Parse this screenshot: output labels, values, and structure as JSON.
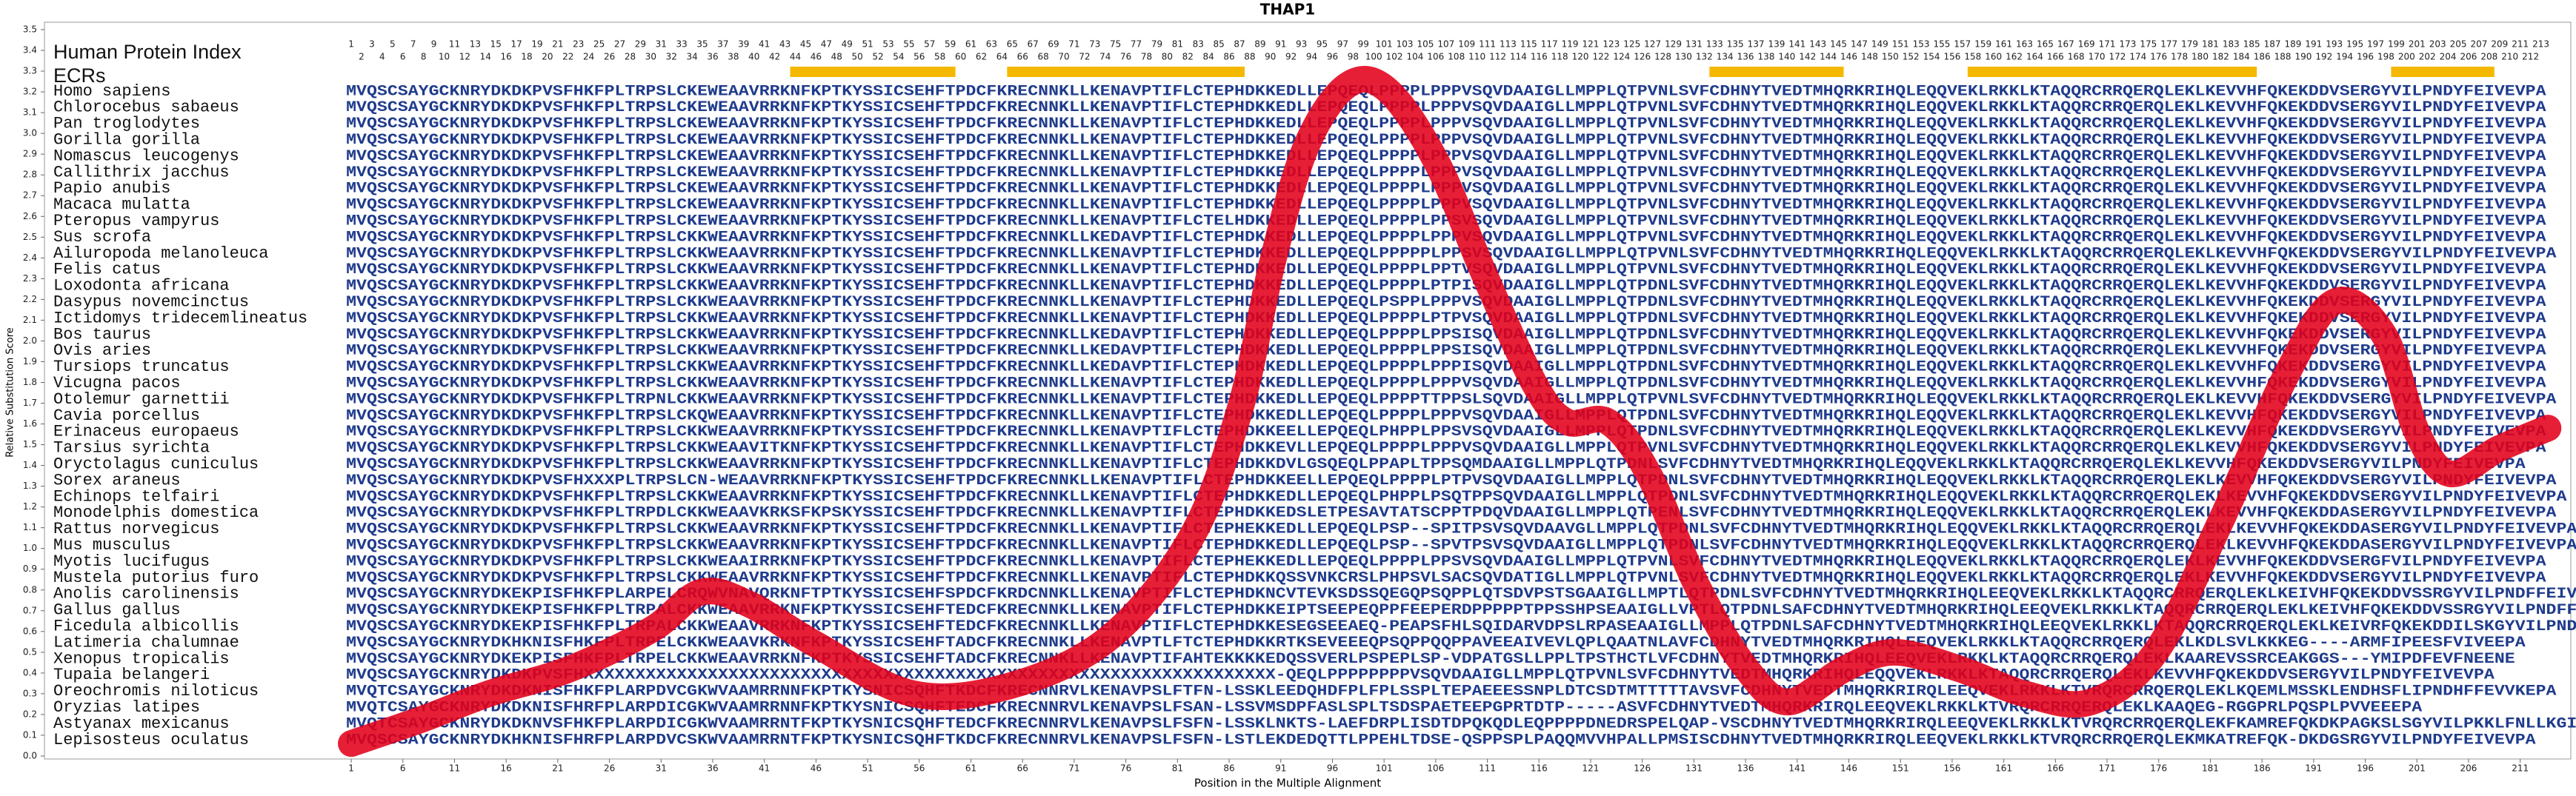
{
  "chart_data": {
    "type": "line",
    "title": "THAP1",
    "y_label": "Relative Substitution Score",
    "x_label": "Position in the Multiple Alignment",
    "index_label": "Human Protein Index",
    "ecr_label": "ECRs",
    "ecr_color": "#f5b800",
    "ecrs": [
      [
        44,
        59
      ],
      [
        65,
        87
      ],
      [
        133,
        145
      ],
      [
        158,
        185
      ],
      [
        199,
        208
      ]
    ],
    "protein_index": [
      1,
      2,
      3,
      4,
      5,
      6,
      7,
      8,
      9,
      10,
      11,
      12,
      13,
      14,
      15,
      16,
      17,
      18,
      19,
      20,
      21,
      22,
      23,
      24,
      25,
      26,
      27,
      28,
      29,
      30,
      31,
      32,
      33,
      34,
      35,
      36,
      37,
      38,
      39,
      40,
      41,
      42,
      43,
      44,
      45,
      46,
      47,
      48,
      49,
      50,
      51,
      52,
      53,
      54,
      55,
      56,
      57,
      58,
      59,
      60,
      61,
      62,
      63,
      64,
      65,
      66,
      67,
      68,
      69,
      70,
      71,
      72,
      73,
      74,
      75,
      76,
      77,
      78,
      79,
      80,
      81,
      82,
      83,
      84,
      85,
      86,
      87,
      88,
      89,
      90,
      91,
      92,
      93,
      94,
      95,
      96,
      97,
      98,
      99,
      100,
      101,
      102,
      103,
      104,
      105,
      106,
      107,
      108,
      109,
      110,
      111,
      112,
      113,
      114,
      115,
      116,
      117,
      118,
      119,
      120,
      121,
      122,
      123,
      124,
      125,
      126,
      127,
      128,
      129,
      130,
      131,
      132,
      133,
      134,
      135,
      136,
      137,
      138,
      139,
      140,
      141,
      142,
      143,
      144,
      145,
      146,
      147,
      148,
      149,
      150,
      151,
      152,
      153,
      154,
      155,
      156,
      157,
      158,
      159,
      160,
      161,
      162,
      163,
      164,
      165,
      166,
      167,
      168,
      169,
      170,
      171,
      172,
      173,
      174,
      175,
      176,
      177,
      178,
      179,
      180,
      181,
      182,
      183,
      184,
      185,
      186,
      187,
      188,
      189,
      190,
      191,
      192,
      193,
      194,
      195,
      196,
      197,
      198,
      199,
      200,
      201,
      202,
      203,
      204,
      205,
      206,
      207,
      208,
      209,
      210,
      211,
      212,
      213
    ],
    "species": [
      "Homo sapiens",
      "Chlorocebus sabaeus",
      "Pan troglodytes",
      "Gorilla gorilla",
      "Nomascus leucogenys",
      "Callithrix jacchus",
      "Papio anubis",
      "Macaca mulatta",
      "Pteropus vampyrus",
      "Sus scrofa",
      "Ailuropoda melanoleuca",
      "Felis catus",
      "Loxodonta africana",
      "Dasypus novemcinctus",
      "Ictidomys tridecemlineatus",
      "Bos taurus",
      "Ovis aries",
      "Tursiops truncatus",
      "Vicugna pacos",
      "Otolemur garnettii",
      "Cavia porcellus",
      "Erinaceus europaeus",
      "Tarsius syrichta",
      "Oryctolagus cuniculus",
      "Sorex araneus",
      "Echinops telfairi",
      "Monodelphis domestica",
      "Rattus norvegicus",
      "Mus musculus",
      "Myotis lucifugus",
      "Mustela putorius furo",
      "Anolis carolinensis",
      "Gallus gallus",
      "Ficedula albicollis",
      "Latimeria chalumnae",
      "Xenopus tropicalis",
      "Tupaia belangeri",
      "Oreochromis niloticus",
      "Oryzias latipes",
      "Astyanax mexicanus",
      "Lepisosteus oculatus"
    ],
    "alignment": [
      "MVQSCSAYGCKNRYDKDKPVSFHKFPLTRPSLCKEWEAAVRRKNFKPTKYSSICSEHFTPDCFKRECNNKLLKENAVPTIFLCTEPHDKKEDLLEPQEQLPPPPLPPPVSQVDAAIGLLMPPLQTPVNLSVFCDHNYTVEDTMHQRKRIHQLEQQVEKLRKKLKTAQQRCRRQERQLEKLKEVVHFQKEKDDVSERGYVILPNDYFEIVEVPA",
      "MVQSCSAYGCKNRYDKDKPVSFHKFPLTRPSLCKEWEAAVRRKNFKPTKYSSICSEHFTPDCFKRECNNKLLKENAVPTIFLCTEPHDKKEDLLEPQEQLPPPPLPPPVSQVDAAIGLLMPPLQTPVNLSVFCDHNYTVEDTMHQRKRIHQLEQQVEKLRKKLKTAQQRCRRQERQLEKLKEVVHFQKEKDDVSERGYVILPNDYFEIVEVPA",
      "MVQSCSAYGCKNRYDKDKPVSFHKFPLTRPSLCKEWEAAVRRKNFKPTKYSSICSEHFTPDCFKRECNNKLLKENAVPTIFLCTEPHDKKEDLLEPQEQLPPPPLPPPVSQVDAAIGLLMPPLQTPVNLSVFCDHNYTVEDTMHQRKRIHQLEQQVEKLRKKLKTAQQRCRRQERQLEKLKEVVHFQKEKDDVSERGYVILPNDYFEIVEVPA",
      "MVQSCSAYGCKNRYDKDKPVSFHKFPLTRPSLCKEWEAAVRRKNFKPTKYSSICSEHFTPDCFKRECNNKLLKENAVPTIFLCTEPHDKKEDLLEPQEQLPPPPLPPPVSQVDAAIGLLMPPLQTPVNLSVFCDHNYTVEDTMHQRKRIHQLEQQVEKLRKKLKTAQQRCRRQERQLEKLKEVVHFQKEKDDVSERGYVILPNDYFEIVEVPA",
      "MVQSCSAYGCKNRYDKDKPVSFHKFPLTRPSLCKEWEAAVRRKNFKPTKYSSICSEHFTPDCFKRECNNKLLKENAVPTIFLCTEPHDKKEDLLEPQEQLPPPPLPPPVSQVDAAIGLLMPPLQTPVNLSVFCDHNYTVEDTMHQRKRIHQLEQQVEKLRKKLKTAQQRCRRQERQLEKLKEVVHFQKEKDDVSERGYVILPNDYFEIVEVPA",
      "MVQSCSAYGCKNRYDKDKPVSFHKFPLTRPSLCKEWEAAVRRKNFKPTKYSSICSEHFTPDCFKRECNNKLLKENAVPTIFLCTEPHDKKEDLLEPQEQLPPPPLPPPVSQVDAAIGLLMPPLQTPVNLSVFCDHNYTVEDTMHQRKRIHQLEQQVEKLRKKLKTAQQRCRRQERQLEKLKEVVHFQKEKDDVSERGYVILPNDYFEIVEVPA",
      "MVQSCSAYGCKNRYDKDKPVSFHKFPLTRPSLCKEWEAAVRRKNFKPTKYSSICSEHFTPDCFKRECNNKLLKENAVPTIFLCTEPHDKKEDLLEPQEQLPPPPLPPPVSQVDAAIGLLMPPLQTPVNLSVFCDHNYTVEDTMHQRKRIHQLEQQVEKLRKKLKTAQQRCRRQERQLEKLKEVVHFQKEKDDVSERGYVILPNDYFEIVEVPA",
      "MVQSCSAYGCKNRYDKDKPVSFHKFPLTRPSLCKEWEAAVRRKNFKPTKYSSICSEHFTPDCFKRECNNKLLKENAVPTIFLCTEPHDKKEDLLEPQEQLPPPPLPPPVSQVDAAIGLLMPPLQTPVNLSVFCDHNYTVEDTMHQRKRIHQLEQQVEKLRKKLKTAQQRCRRQERQLEKLKEVVHFQKEKDDVSERGYVILPNDYFEIVEVPA",
      "MVQSCSAYGCKNRYDKDKPVSFHKFPLTRPSLCKEWEAAVRRKNFKPTKYSSICSEHFTPDCFKRECNNKLLKENAVPTIFLCTELHDKKEDLLEPQEQLPPPPLPPSVSQVDAAIGLLMPPLQTPVNLSVFCDHNYTVEDTMHQRKRIHQLEQQVEKLRKKLKTAQQRCRRQERQLEKLKEVVHFQKEKDDVSERGYVILPNDYFEIVEVPA",
      "MVQSCSAYGCKNRYDKDKPVSFHKFPLTRPSLCKKWEAAVRRKNFKPTKYSSICSEHFTPDCFKRECNNKLLKEDAVPTIFLCTEPHDKKEDLLEPQEQLPPPPLPPPVSQVDAAIGLLMPPLQTPVNLSVFCDHNYTVEDTMHQRKRIHQLEQQVEKLRKKLKTAQQRCRRQERQLEKLKEVVHFQKEKDDVSERGYVILPNDYFEIVEVPA",
      "MVQSCSAYGCKNRYDKDKPVSFHKFPLTRPSLCKKWEAAVRRKNFKPTKYSSICSEHFTPDCFKRECNNKLLKENAVPTIFLCTEPHDKKEDLLEPQEQLPPPPPLPPSVSQVDAAIGLLMPPLQTPVNLSVFCDHNYTVEDTMHQRKRIHQLEQQVEKLRKKLKTAQQRCRRQERQLEKLKEVVHFQKEKDDVSERGYVILPNDYFEIVEVPA",
      "MVQSCSAYGCKNRYDKDKPVSFHKFPLTRPSLCKKWEAAVRRKNFKPTKYSSICSEHFTPDCFKRECNNKLLKENAVPTIFLCTEPHDKKEDLLEPQEQLPPPPLPPTVSQVDAAIGLLMPPLQTPVNLSVFCDHNYTVEDTMHQRKRIHQLEQQVEKLRKKLKTAQQRCRRQERQLEKLKEVVHFQKEKDDVSERGYVILPNDYFEIVEVPA",
      "MVQSCSAYGCKNRYDKDKPVSFHKFPLTRPSLCKKWEAAVRRKNFKPTKYSSICSEHFTPDCFKRECNNKLLKENAVPTIFLCTEPHDKKEDLLEPQEQLPPPPLPTPISQVDAAIGLLMPPLQTPDNLSVFCDHNYTVEDTMHQRKRIHQLEQQVEKLRKKLKTAQQRCRRQERQLEKLKEVVHFQKEKDDVSERGYVILPNDYFEIVEVPA",
      "MVQSCSAYGCKNRYDKDKPVSFHKFPLTRPSLCKKWEAAVRRKNFKPTKYSSICSEHFTPDCFKRECNNKLLKENAVPTIFLCTEPHDKKEDLLEPQEQLPSPPLPPPVSQVDAAIGLLMPPLQTPDNLSVFCDHNYTVEDTMHQRKRIHQLEQQVEKLRKKLKTAQQRCRRQERQLEKLKEVVHFQKEKDDVSERGYVILPNDYFEIVEVPA",
      "MVQSCSAYGCKNRYDKDKPVSFHKFPLTRPSLCKKWEAAVRRKNFKPTKYSSICSEHFTPDCFKRECNNKLLKENAVPTIFLCTEPHDKKEDLLEPQEQLPPPPLPTPVSQVDAAIGLLMPPLQTPDNLSVFCDHNYTVEDTMHQRKRIHQLEQQVEKLRKKLKTAQQRCRRQERQLEKLKEVVHFQKEKDDVSERGYVILPNDYFEIVEVPA",
      "MVQSCSAYGCKNRYDKDKPVSFHKFPLTRPSLCKKWEAAVRRKNFKPTKYSSICSEHFTPDCFKRECNNKLLKEDAVPTIFLCTEPHDKKEDLLEPQEQLPPPPLPPSISQVDAAIGLLMPPLQTPDNLSVFCDHNYTVEDTMHQRKRIHQLEQQVEKLRKKLKTAQQRCRRQERQLEKLKEVVHFQKEKDDVSERGYVILPNDYFEIVEVPA",
      "MVQSCSAYGCKNRYDKDKPVSFHKFPLTRPSLCKKWEAAVRRKNFKPTKYSSICSEHFTPDCFKRECNNKLLKEDAVPTIFLCTEPHDKKEDLLEPQEQLPPPPLPPSISQVDAAIGLLMPPLQTPDNLSVFCDHNYTVEDTMHQRKRIHQLEQQVEKLRKKLKTAQQRCRRQERQLEKLKEVVHFQKEKDDVSERGYVILPNDYFEIVEVPA",
      "MVQSCSAYGCKNRYDKDKPVSFHKFPLTRPSLCKKWEAAVRRKNFKPTKYSSICSEHFTPDCFKRECNNKLLKEDAVPTIFLCTEPHDKKEDLLEPQEQLPPPPLPPPISQVDAAIGLLMPPLQTPDNLSVFCDHNYTVEDTMHQRKRIHQLEQQVEKLRKKLKTAQQRCRRQERQLEKLKEVVHFQKEKDDVSERGYVILPNDYFEIVEVPA",
      "MVQSCSAYGCKNRYDKDKPVSFHKFPLTRPSLCKKWEAAVRRKNFKPTKYSSICSEHFTPDCFKRECNNKLLKENAVPTIFLCTEPHDKKEDLLEPQEQLPPPPLPPPVSQVDAAIGLLMPPLQTPDNLSVFCDHNYTVEDTMHQRKRIHQLEQQVEKLRKKLKTAQQRCRRQERQLEKLKEVVHFQKEKDDVSERGYVILPNDYFEIVEVPA",
      "MVQSCSAYGCKNRYDKDKPVSFHKFPLTRPNLCKKWEAAVRRKNFKPTKYSSICSEHFTPDCFKRECNNKLLKENAVPTIFLCTEPHDKKEDLLEPQEQLPPPPTTPPSLSQVDAAIGLLMPPLQTPVNLSVFCDHNYTVEDTMHQRKRIHQLEQQVEKLRKKLKTAQQRCRRQERQLEKLKEVVHFQKEKDDVSERGYVILPNDYFEIVEVPA",
      "MVQSCSAYGCKNRYDKDKPVSFHKFPLTRPSLCKQWEAAVRRKNFKPTKYSSICSEHFTPDCFKRECNNKLLKENAVPTIFLCTEPHDKKEDLLEPQEQLPPPPLPPPVSQVDAAIGLLMPPLQTPDNLSVFCDHNYTVEDTMHQRKRIHQLEQQVEKLRKKLKTAQQRCRRQERQLEKLKEVVHFQKEKDDVSERGYVILPNDYFEIVEVPA",
      "MVQSCSAYGCKNRYDKDKPVSFHKFPLTRPSLCKKWEAAVRRKNFKPTKYSSICSEHFTPDCFKRECNNKLLKENAVPTIFLCTEPHDKKEELLEPQEQLPHPPLPPSVSQVDAAIGLLMPPLQTPDNLSVFCDHNYTVEDTMHQRKRIHQLEQQVEKLRKKLKTAQQRCRRQERQLEKLKEVVHFQKEKDDVSERGYVILPNDYFEIVEVPA",
      "MVQSCSAYGCKNRYDKDKPVSFHKFPLTRPSLCKKWEAAVITKNFKPTKYSSICSEHFTPDCFKRECNNKLLKENAVPTIFLCTEPHDKKEVLLEPQEQLPPPPLPPPVSQVDAAIGLLMPPLQTPVNLSVFCDHNYTVEDTMHQRKRIHQLEQQVEKLRKKLKTAQQRCRRQERQLEKLKEVVHFQKEKDDVSERGYVILPNDYFEIVEVPA",
      "MVQSCSAYGCKNRYDKDKPVSFHKFPLTRPSLCKKWEAAVRRKNFKPTKYSSICSEHFTPDCFKRECNNKLLKENAVPTIFLCTEPHDKKDVLGSQEQLPPAPLTPPSQMDAAIGLLMPPLQTPDNLSVFCDHNYTVEDTMHQRKRIHQLEQQVEKLRKKLKTAQQRCRRQERQLEKLKEVVHFQKEKDDVSERGYVILPNDYFEIVEVPA",
      "MVQSCSAYGCKNRYDKDKPVSFHXXXPLTRPSLCN-WEAAVRRKNFKPTKYSSICSEHFTPDCFKRECNNKLLKENAVPTIFLCTEPHDKKEELLEPQEQLPPPPLPTPVSQVDAAIGLLMPPLQTPDNLSVFCDHNYTVEDTMHQRKRIHQLEQQVEKLRKKLKTAQQRCRRQERQLEKLKEVVHFQKEKDDVSERGYVILPNDYFEIVEVPA",
      "MVQSCSAYGCKNRYDKDKPVSFHKFPLTRPSLCKKWEAAVRRKNFKPTKYSSICSEHFTPDCFKRECNNKLLKENAVPTIFLCTEPHDKKEDLLEPQEQLPHPPLPSQTPPSQVDAAIGLLMPPLQTPDNLSVFCDHNYTVEDTMHQRKRIHQLEQQVEKLRKKLKTAQQRCRRQERQLEKLKEVVHFQKEKDDVSERGYVILPNDYFEIVEVPA",
      "MVQSCSAYGCKNRYDKDKPVSFHKFPLTRPDLCKKWEAAVKRKSFKPSKYSSICSEHFTPDCFKRECNNKLLKENAVPTIFLCTEPHDKKEDSLETPESAVTATSCPPTPDQVDAAIGLLMPPLQTPENLSVFCDHNYTVEDTMHQRKRIHQLEQQVEKLRKKLKTAQQRCRRQERQLEKLKEVVHFQKEKDDASERGYVILPNDYFEIVEVPA",
      "MVQSCSAYGCKNRYDKDKPVSFHKFPLTRPSLCKKWEAAVRRKNFKPTKYSSICSEHFTPDCFKRECNNKLLKENAVPTIFLCTEPHEKKEDLLEPQEQLPSP--SPITPSVSQVDAAVGLLMPPLQTPDNLSVFCDHNYTVEDTMHQRKRIHQLEQQVEKLRKKLKTAQQRCRRQERQLEKLKEVVHFQKEKDDASERGYVILPNDYFEIVEVPA",
      "MVQSCSAYGCKNRYDKDKPVSFHKFPLTRPSLCKKWEAAVRRKNFKPTKYSSICSEHFTPDCFKRECNNKLLKENAVPTIFLCTEPHDKKEDLLEPQEQLPSP--SPVTPSVSQVDAAIGLLMPPLQTPDNLSVFCDHNYTVEDTMHQRKRIHQLEQQVEKLRKKLKTAQQRCRRQERQLEKLKEVVHFQKEKDDASERGYVILPNDYFEIVEVPA",
      "MVQSCSAYGCKNRYDKDKPVSFHKFPLTRPSLCKKWEAAIRRKNFKPTKYSSICSEHFTPDCFKRECNNKLLKENAVPTIFLCTEPHEKKEDLLEPQEQLPPPPLPPSVSQVDAAIGLLMPPLQTPVNLSVFCDHNYTVEDTMHQRKRIHQLEQQVEKLRKKLKTAQQRCRRQERQLEKLKEVVHFQKEKDDVSERGFVILPNDYFEIVEVPA",
      "MVQSCSAYGCKNRYDKDKPVSFHKFPLTRPSLCKKWEAAVRRKNFKPTKYSSICSEHFTPDCFKRECNNKLLKENAVPTIFLCTEPHDKKQSSVNKCRSLPHPSVLSACSQVDATIGLLMPPLQTPVNLSVFCDHNYTVEDTMHQRKRIHQLEQQVEKLRKKLKTAQQRCRRQERQLEKLKEVVHFQKEKDDVSERGYVILPNDYFEIVEVPA",
      "MVQSCSAYGCKNRYDKEKPISFHKFPLARPELCRQWVNAVQRKNFTPTKYSSICSEHFSPDCFKRDCNNKLLKENAVPTIFLCTEPHDKNCVTEVKSDSSQEGQPSQPPLQTSDVPSTSGAAIGLLMPTLQTPDNLSVFCDHNYTVEDTMHQRKRIHQLEEQVEKLRKKLKTAQQRCRRQERQLEKLKEIVHFQKEKDDVSSRGYVILPNDFFEIVEVPA",
      "MVQSCSAYGCKNRYDKEKPISFHKFPLTRPALCKKWEAAVRRKNFKPTKYSSICSEHFTEDCFKRECNNKLLKENAVPTIFLCTEPHDKKEIPTSEEPEQPPFEEPERDPPPPPTPPSSHPSEAAIGLLVPTLQTPDNLSAFCDHNYTVEDTMHQRKRIHQLEEQVEKLRKKLKTAQQRCRRQERQLEKLKEIVHFQKEKDDVSSRGYVILPNDFFEIVEVPA",
      "MVQSCSAYGCKNRYDKEKPISFHKFPLTRPALCKKWEAAVRRKNFKPTKYSSICSEHFTEDCFKRECNNKLLKENAVPTIFLCTEPHDKKESEGSEEAEQ-PEAPSFHLSQIDARVDPSLRPASEAAIGLLMPPLQTPDNLSAFCDHNYTVEDTMHQRKRIHQLEEQVEKLRKKLKTAQQRCRRQERQLEKLKEIVRFQKEKDDILSKGYVILPNDFFEIVEVPA",
      "MVQSCSAYGCKNRYDKHKNISFHKFPLTRPELCKKWEAAVKRKNFKPTKYSSICSEHFTADCFKRECNNKLLKENAVPTLFTCTEPHDKKRTKSEVEEEQPSQPPQQPPAVEEAIVEVLQPLQAATNLAVFCDHNYTVEDTMHQRKRIHQLEEQVEKLRKKLKTAQQRCRRQERQLEKLKDLSVLKKKEG----ARMFIPEESFVIVEEPA",
      "MVQSCSAYGCKNRYDKEKPISFHKFPLTRPELCKKWEAAVRRKNFKPTKYSSICSEHFTADCFKRECNNKLLKENAVPTIFAHTEKKKKEDQSSVERLPSPEPLSP-VDPATGSLLPPLTPSTHCTLVFCDHNYTVEDTMHQRKRIHQLEEQVEKLRKKLKTAQQRCRRQERQLEKLKAAREVSSRCEAKGGS---YMIPDFEVFNEENE",
      "MVQSCSAYGCKNRYDKDKPVSFHXXXXXXXXXXXXXXXXXXXXXXXXXXXXXXXXXXXXXXXXXXXXXXXXXXXXXXXXXXXXXXXXXXX-QEQLPPPPPPPPVSQVDAAIGLLMPPLQTPVNLSVFCDHNYTVEDTMHQRKRIHQLEQQVEKLRKKLKTAQQRCRRQERQLEKLKEVVHFQKEKDDVSERGYVILPNDYFEIVEVPA",
      "MVQTCSAYGCKNRYDKDKNISFHKFPLARPDVCGKWVAAMRRNNFKPTKYSNICSQHFTKDCFKRECNNRVLKENAVPSLFTFN-LSSKLEEDQHDFPLFPLSSPLTEPAEEESSNPLDTCSDTMTTTTTAVSVFCDHNYTVEDTMHQRKRIRQLEEQVEKLRKKLKTVRQRCRRQERQLEKLKQEMLMSSKLENDHSFLIPNDHFFEVVKEPA",
      "MVQTCSAYGCKNRYDKDKNISFHRFPLARPDICGKWVAAMRRNNFKPTKYSNICSQHFTEDCFKRECNNRVLKENAVPSLFSAN-LSSVMSDPFASLSPLTSDSPAETEEPGPRTDTP-----ASVFCDHNYTVEDTMHQRKRIRQLEEQVEKLRKKLKTVRQRCRRQERQLEKLKAAQEG-RGGPRLPQSPLPVVEEEPA",
      "MVQTCSAYGCKNRYDKDKNVSFHKFPLARPDICGKWVAAMRRNTFKPTKYSNICSQHFTEDCFKRECNNRVLKENAVPSLFSFN-LSSKLNKTS-LAEFDRPLISDTDPQKQDLEQPPPPDNEDRSPELQAP-VSCDHNYTVEDTMHQRKRIRQLEEQVEKLRKKLKTVRQRCRRQERQLEKFKAMREFQKDKPAGKSLSGYVILPKKLFNLLKGIE",
      "MVQSCSAYGCKNRYDKHKNISFHRFPLARPDVCSKWVAAMRRNTFKPTKYSNICSQHFTKDCFKRECNNRVLKENAVPSLFSFN-LSTLEKDEDQTTLPPEHLTDSE-QSPPSPLPAQQMVVHPALLPMSISCDHNYTVEDTMHQRKRIRQLEEQVEKLRKKLKTVRQRCRRQERQLEKMKATREFQK-DKDGSRGYVILPNDYFEIVEVPA"
    ],
    "x": [
      1,
      8,
      14.3,
      22.2,
      30.1,
      34.9,
      39.6,
      45.9,
      55.4,
      64.9,
      74.4,
      82.3,
      87.1,
      90.2,
      93.4,
      97.4,
      101.3,
      106.1,
      110.8,
      115.6,
      118.7,
      122.7,
      126.6,
      131.4,
      136.1,
      140.1,
      145.6,
      150.4,
      156.7,
      163,
      169.4,
      175.7,
      182,
      188.3,
      193.1,
      197.8,
      201,
      204.2,
      208.9,
      213.7
    ],
    "values": [
      0.06,
      0.18,
      0.3,
      0.42,
      0.61,
      0.79,
      0.73,
      0.54,
      0.3,
      0.34,
      0.57,
      1.05,
      1.68,
      2.38,
      2.93,
      3.23,
      3.21,
      2.86,
      2.31,
      1.79,
      1.61,
      1.61,
      1.36,
      0.81,
      0.42,
      0.26,
      0.42,
      0.5,
      0.42,
      0.3,
      0.26,
      0.5,
      1.13,
      1.83,
      2.19,
      2.03,
      1.56,
      1.36,
      1.48,
      1.58
    ],
    "color": "#e2001a",
    "xlim": [
      -28.7,
      215.9
    ],
    "xticks": [
      1,
      6,
      11,
      16,
      21,
      26,
      31,
      36,
      41,
      46,
      51,
      56,
      61,
      66,
      71,
      76,
      81,
      86,
      91,
      96,
      101,
      106,
      111,
      116,
      121,
      126,
      131,
      136,
      141,
      146,
      151,
      156,
      161,
      166,
      171,
      176,
      181,
      186,
      191,
      196,
      201,
      206,
      211
    ],
    "ylim": [
      0,
      3.5
    ],
    "yticks": [
      {
        "value": 0,
        "label": "0.0"
      },
      0.1,
      0.2,
      0.3,
      0.4,
      0.5,
      0.6,
      0.7,
      0.8,
      0.9,
      {
        "value": 1,
        "label": "1.0"
      },
      1.1,
      1.2,
      1.3,
      1.4,
      1.5,
      1.6,
      1.7,
      1.8,
      1.9,
      {
        "value": 2,
        "label": "2.0"
      },
      2.1,
      2.2,
      2.3,
      2.4,
      2.5,
      2.6,
      2.7,
      2.8,
      2.9,
      {
        "value": 3,
        "label": "3.0"
      },
      3.1,
      3.2,
      3.3,
      3.4,
      3.5
    ]
  }
}
